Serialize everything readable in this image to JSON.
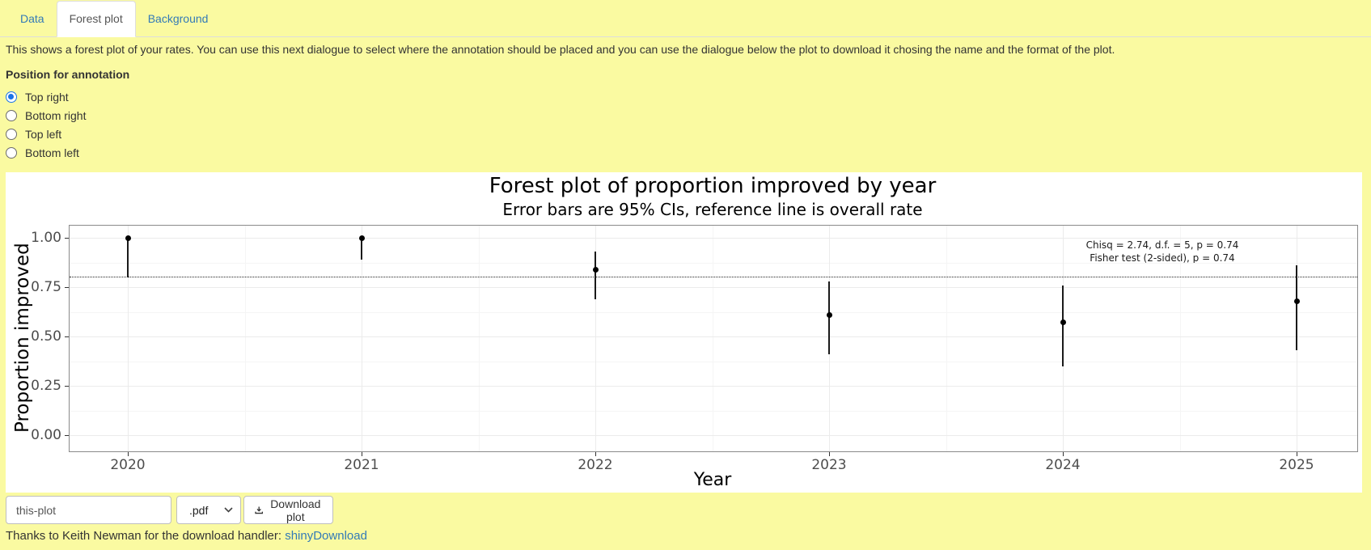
{
  "tabs": [
    {
      "label": "Data",
      "active": false
    },
    {
      "label": "Forest plot",
      "active": true
    },
    {
      "label": "Background",
      "active": false
    }
  ],
  "description": "This shows a forest plot of your rates. You can use this next dialogue to select where the annotation should be placed and you can use the dialogue below the plot to download it chosing the name and the format of the plot.",
  "annotation_control": {
    "label": "Position for annotation",
    "options": [
      {
        "label": "Top right",
        "selected": true
      },
      {
        "label": "Bottom right",
        "selected": false
      },
      {
        "label": "Top left",
        "selected": false
      },
      {
        "label": "Bottom left",
        "selected": false
      }
    ]
  },
  "chart_data": {
    "type": "scatter",
    "subtype": "forest-plot-error-bars",
    "title": "Forest plot of proportion improved by year",
    "subtitle": "Error bars are 95% CIs, reference line is overall rate",
    "xlabel": "Year",
    "ylabel": "Proportion improved",
    "x": [
      2020,
      2021,
      2022,
      2023,
      2024,
      2025
    ],
    "estimates": [
      1.0,
      1.0,
      0.84,
      0.61,
      0.57,
      0.68
    ],
    "ci_low": [
      0.8,
      0.89,
      0.69,
      0.41,
      0.35,
      0.43
    ],
    "ci_high": [
      1.0,
      1.0,
      0.93,
      0.78,
      0.76,
      0.86
    ],
    "reference_line": 0.8,
    "ylim": [
      0,
      1
    ],
    "yticks": [
      0,
      0.25,
      0.5,
      0.75,
      1
    ],
    "ytick_labels": [
      "0.00",
      "0.25",
      "0.50",
      "0.75",
      "1.00"
    ],
    "grid": true,
    "annotation": {
      "position": "top right",
      "lines": [
        "Chisq = 2.74, d.f. = 5, p = 0.74",
        "Fisher test (2-sided), p = 0.74"
      ]
    }
  },
  "download": {
    "filename": "this-plot",
    "format": ".pdf",
    "button_label": "Download plot"
  },
  "footer": {
    "text": "Thanks to Keith Newman for the download handler: ",
    "link_label": "shinyDownload"
  },
  "colors": {
    "page_bg": "#FAFAA1",
    "link_blue": "#337AB7",
    "active_tab_text": "#555555",
    "radio_accent": "#1A73E8",
    "plot_bg": "#FFFFFF",
    "gridline_major": "#EBEBEB",
    "gridline_minor": "#F5F5F5",
    "panel_border": "#8A8A8A",
    "data_color": "#000000"
  }
}
